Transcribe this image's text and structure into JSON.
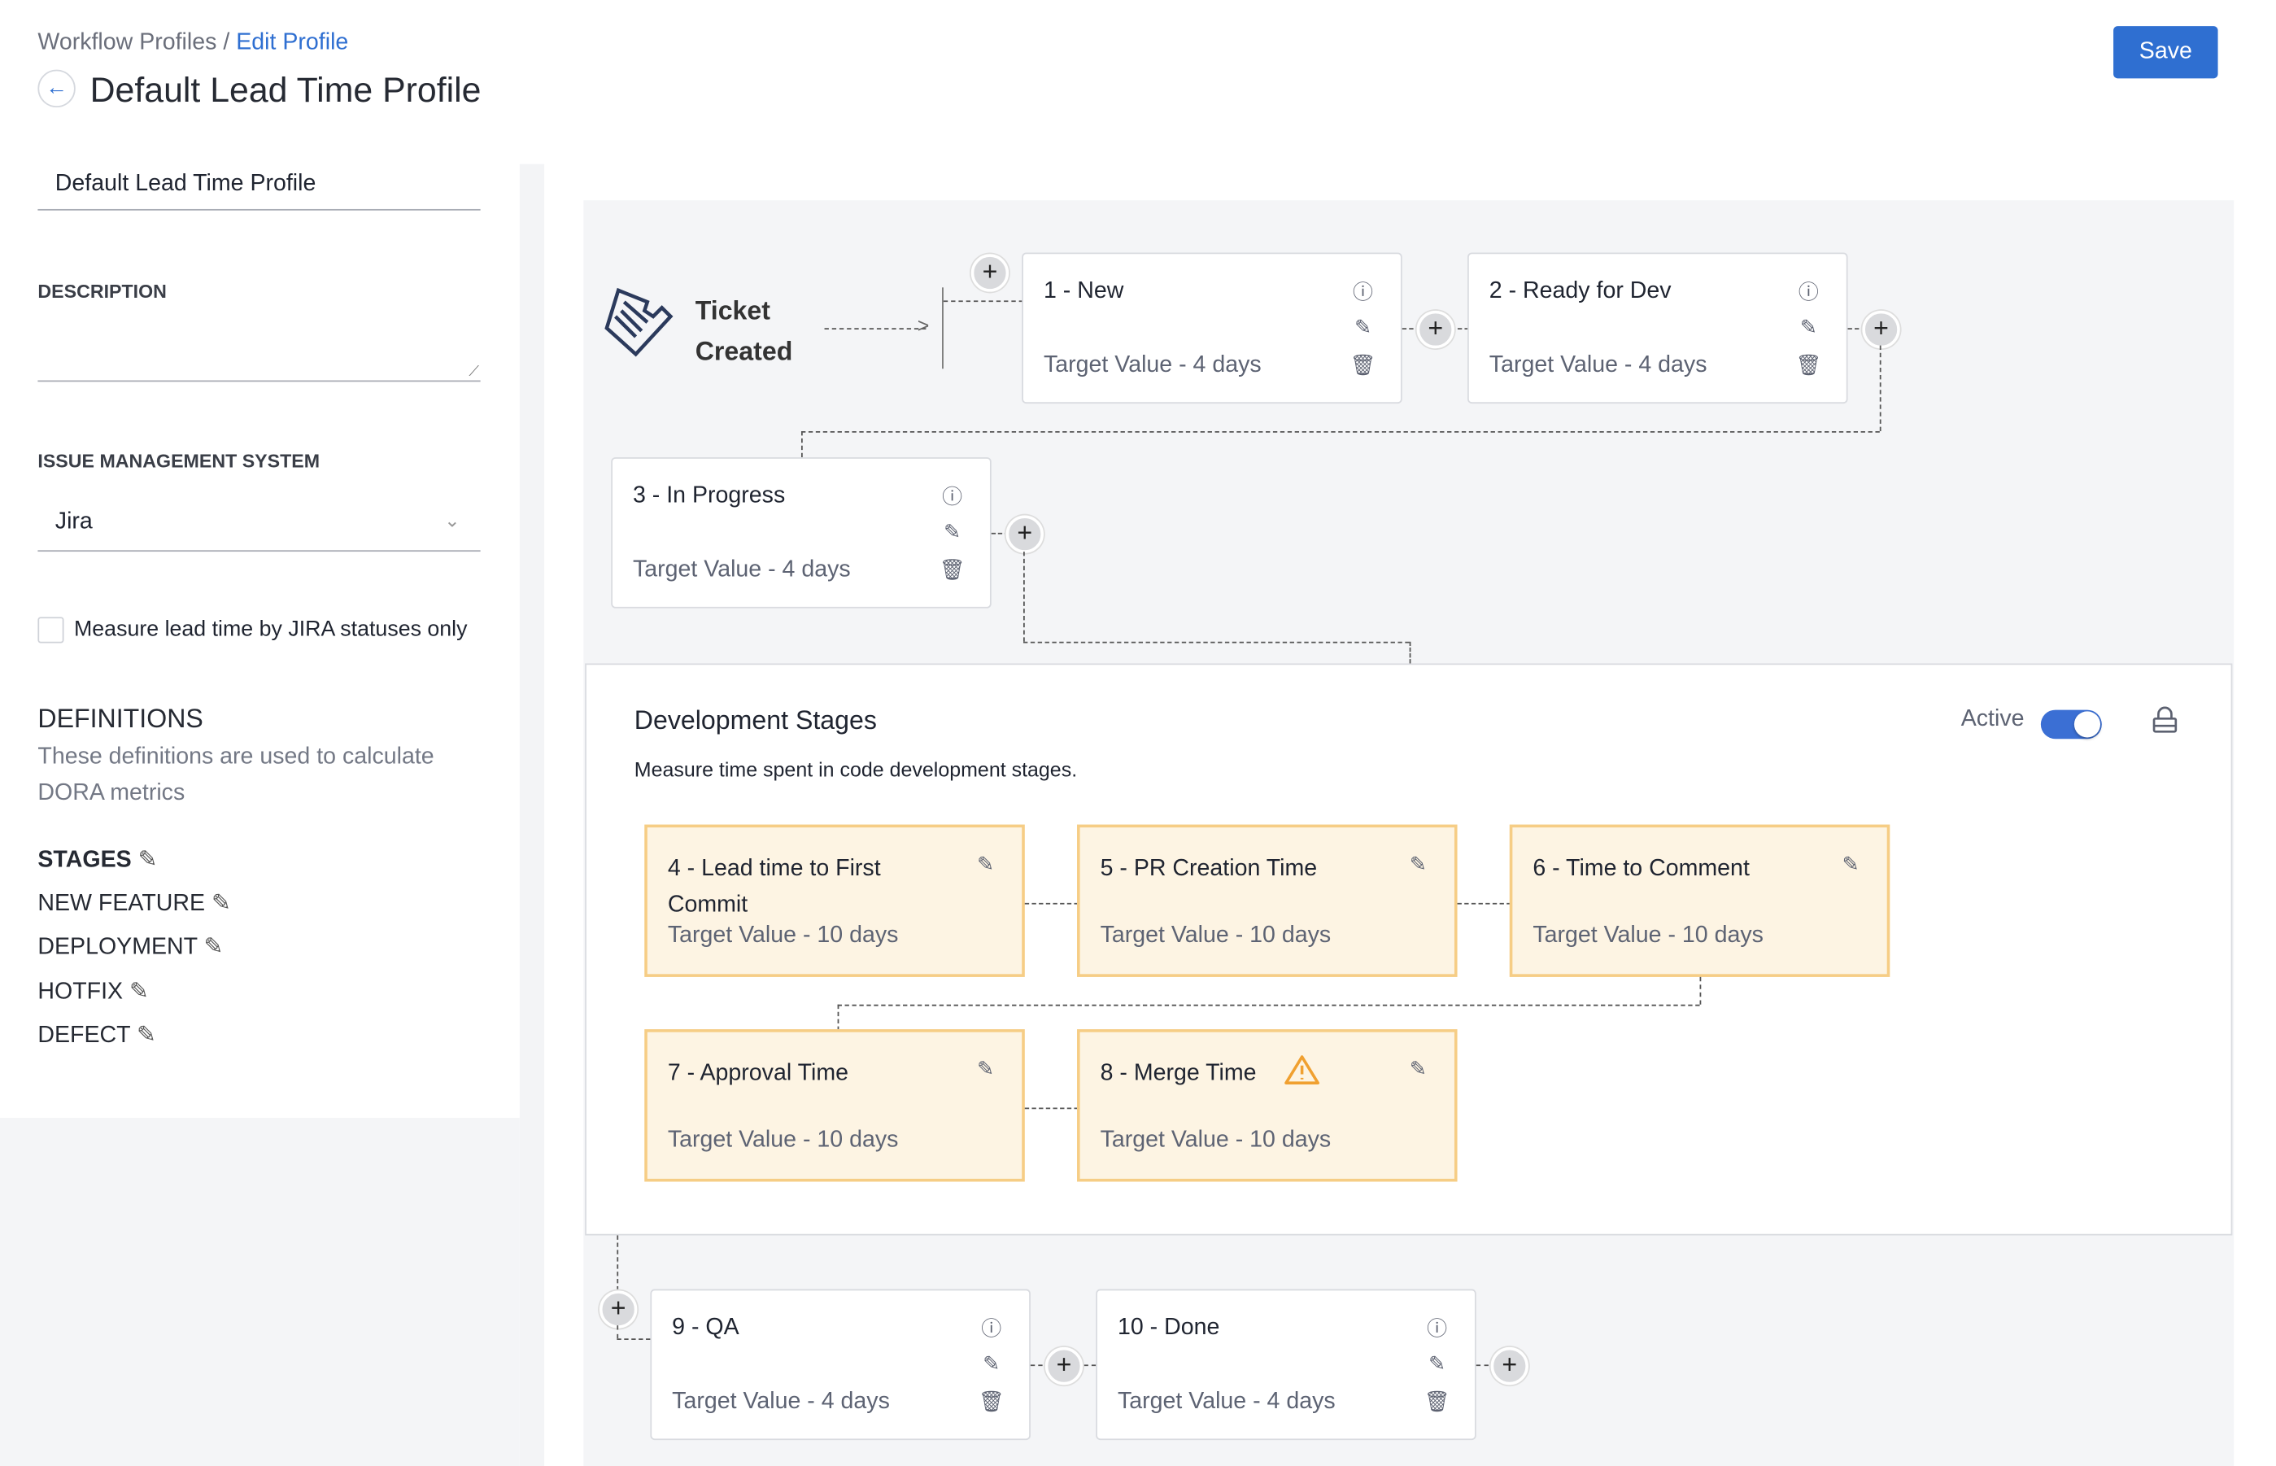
{
  "breadcrumb": {
    "parent": "Workflow Profiles",
    "separator": "/",
    "current": "Edit Profile"
  },
  "header": {
    "title": "Default Lead Time Profile",
    "save_label": "Save"
  },
  "sidebar": {
    "name_value": "Default Lead Time Profile",
    "description_label": "DESCRIPTION",
    "description_value": "",
    "ims_label": "ISSUE MANAGEMENT SYSTEM",
    "ims_value": "Jira",
    "checkbox_label": "Measure lead time by JIRA statuses only",
    "checkbox_checked": false,
    "definitions_title": "DEFINITIONS",
    "definitions_desc": "These definitions are used to calculate DORA metrics",
    "definitions": [
      "STAGES",
      "NEW FEATURE",
      "DEPLOYMENT",
      "HOTFIX",
      "DEFECT"
    ]
  },
  "workflow": {
    "start_label_1": "Ticket",
    "start_label_2": "Created",
    "stages": [
      {
        "name": "1 - New",
        "target": "Target Value - 4 days"
      },
      {
        "name": "2 - Ready for Dev",
        "target": "Target Value - 4 days"
      },
      {
        "name": "3 - In Progress",
        "target": "Target Value - 4 days"
      },
      {
        "name": "9 - QA",
        "target": "Target Value - 4 days"
      },
      {
        "name": "10 - Done",
        "target": "Target Value - 4 days"
      }
    ],
    "dev": {
      "title": "Development Stages",
      "desc": "Measure time spent in code development stages.",
      "active_label": "Active",
      "active": true,
      "stages": [
        {
          "name": "4 - Lead time to First Commit",
          "target": "Target Value - 10 days"
        },
        {
          "name": "5 - PR Creation Time",
          "target": "Target Value - 10 days"
        },
        {
          "name": "6 - Time to Comment",
          "target": "Target Value - 10 days"
        },
        {
          "name": "7 - Approval Time",
          "target": "Target Value - 10 days"
        },
        {
          "name": "8 - Merge Time",
          "target": "Target Value - 10 days",
          "warning": true
        }
      ]
    }
  },
  "colors": {
    "accent": "#2f6fd1",
    "dev_card_bg": "#fdf4e3",
    "dev_card_border": "#f6cd85",
    "warning": "#f0a030"
  }
}
